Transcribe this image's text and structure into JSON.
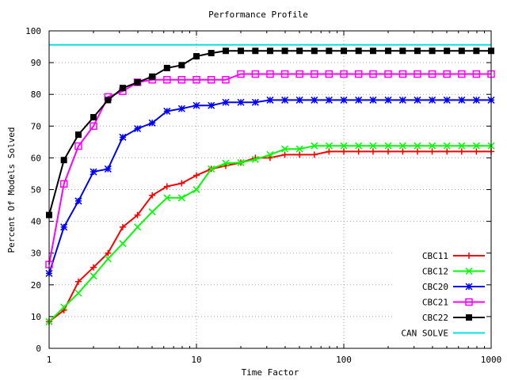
{
  "chart_data": {
    "type": "line",
    "title": "Performance Profile",
    "xlabel": "Time Factor",
    "ylabel": "Percent Of Models Solved",
    "xscale": "log",
    "xlim": [
      1,
      1000
    ],
    "ylim": [
      0,
      100
    ],
    "xticks": [
      1,
      10,
      100,
      1000
    ],
    "xtick_labels": [
      "1",
      "10",
      "100",
      "1000"
    ],
    "yticks": [
      0,
      10,
      20,
      30,
      40,
      50,
      60,
      70,
      80,
      90,
      100
    ],
    "ytick_labels": [
      "0",
      "10",
      "20",
      "30",
      "40",
      "50",
      "60",
      "70",
      "80",
      "90",
      "100"
    ],
    "grid": true,
    "legend_position": "bottom-right",
    "x": [
      1,
      1.26,
      1.58,
      2,
      2.51,
      3.16,
      3.98,
      5.01,
      6.31,
      7.94,
      10,
      12.6,
      15.8,
      20,
      25.1,
      31.6,
      39.8,
      50.1,
      63.1,
      79.4,
      100,
      126,
      158,
      200,
      251,
      316,
      398,
      501,
      631,
      794,
      1000
    ],
    "series": [
      {
        "name": "CBC11",
        "color": "#ff0000",
        "marker": "plus",
        "values": [
          8.4,
          12,
          21,
          25.5,
          30,
          38.2,
          42,
          48.2,
          51,
          52,
          54.5,
          56.5,
          57.5,
          58.5,
          60,
          60,
          61,
          61,
          61,
          62,
          62,
          62,
          62,
          62,
          62,
          62,
          62,
          62,
          62,
          62,
          62
        ]
      },
      {
        "name": "CBC12",
        "color": "#00ff00",
        "marker": "cross",
        "values": [
          8.4,
          13,
          17.4,
          22.8,
          28.2,
          33,
          38.2,
          43,
          47.4,
          47.4,
          50,
          56.5,
          58.3,
          58.5,
          59.5,
          61,
          62.8,
          62.8,
          63.8,
          63.8,
          63.8,
          63.8,
          63.8,
          63.8,
          63.8,
          63.8,
          63.8,
          63.8,
          63.8,
          63.8,
          63.8
        ]
      },
      {
        "name": "CBC20",
        "color": "#0000ff",
        "marker": "star",
        "values": [
          23.6,
          38.2,
          46.4,
          55.6,
          56.5,
          66.5,
          69.2,
          71,
          74.7,
          75.5,
          76.5,
          76.5,
          77.5,
          77.5,
          77.5,
          78.2,
          78.2,
          78.2,
          78.2,
          78.2,
          78.2,
          78.2,
          78.2,
          78.2,
          78.2,
          78.2,
          78.2,
          78.2,
          78.2,
          78.2,
          78.2
        ]
      },
      {
        "name": "CBC21",
        "color": "#ff00ff",
        "marker": "square-open",
        "values": [
          26.4,
          51.8,
          63.7,
          70,
          79.2,
          81,
          83.8,
          84.6,
          84.6,
          84.6,
          84.6,
          84.6,
          84.6,
          86.4,
          86.4,
          86.4,
          86.4,
          86.4,
          86.4,
          86.4,
          86.4,
          86.4,
          86.4,
          86.4,
          86.4,
          86.4,
          86.4,
          86.4,
          86.4,
          86.4,
          86.4
        ]
      },
      {
        "name": "CBC22",
        "color": "#000000",
        "marker": "square-filled",
        "values": [
          42,
          59.3,
          67.3,
          72.8,
          78.2,
          82,
          83.8,
          85.6,
          88.3,
          89.2,
          92,
          93,
          93.7,
          93.7,
          93.7,
          93.7,
          93.7,
          93.7,
          93.7,
          93.7,
          93.7,
          93.7,
          93.7,
          93.7,
          93.7,
          93.7,
          93.7,
          93.7,
          93.7,
          93.7,
          93.7
        ]
      },
      {
        "name": "CAN SOLVE",
        "color": "#00e0e0",
        "marker": "none",
        "values": [
          95.6,
          95.6,
          95.6,
          95.6,
          95.6,
          95.6,
          95.6,
          95.6,
          95.6,
          95.6,
          95.6,
          95.6,
          95.6,
          95.6,
          95.6,
          95.6,
          95.6,
          95.6,
          95.6,
          95.6,
          95.6,
          95.6,
          95.6,
          95.6,
          95.6,
          95.6,
          95.6,
          95.6,
          95.6,
          95.6,
          95.6
        ]
      }
    ]
  }
}
